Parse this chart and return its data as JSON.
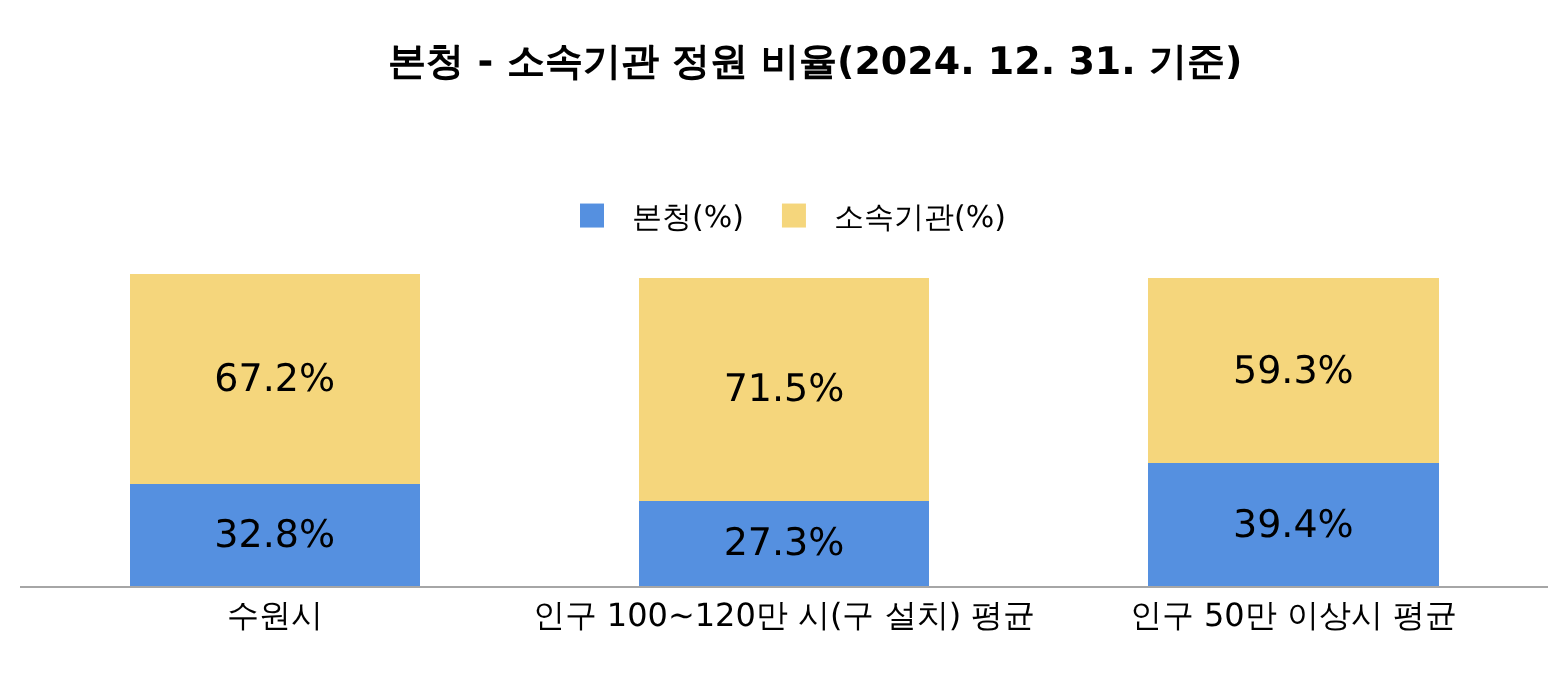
{
  "chart_data": {
    "type": "bar",
    "title": "본청 - 소속기관 정원 비율(2024. 12. 31. 기준)",
    "categories": [
      "수원시",
      "인구 100~120만 시(구 설치) 평균",
      "인구 50만 이상시 평균"
    ],
    "stacked": true,
    "ylim": [
      0,
      100
    ],
    "legend": "top",
    "grid": false,
    "tick_labels": "x",
    "series": [
      {
        "name": "본청(%)",
        "color": "#5590e0",
        "values": [
          32.8,
          27.3,
          39.4
        ],
        "value_labels": [
          "32.8%",
          "27.3%",
          "39.4%"
        ]
      },
      {
        "name": "소속기관(%)",
        "color": "#f5d67c",
        "values": [
          67.2,
          71.5,
          59.3
        ],
        "value_labels": [
          "67.2%",
          "71.5%",
          "59.3%"
        ]
      }
    ]
  }
}
